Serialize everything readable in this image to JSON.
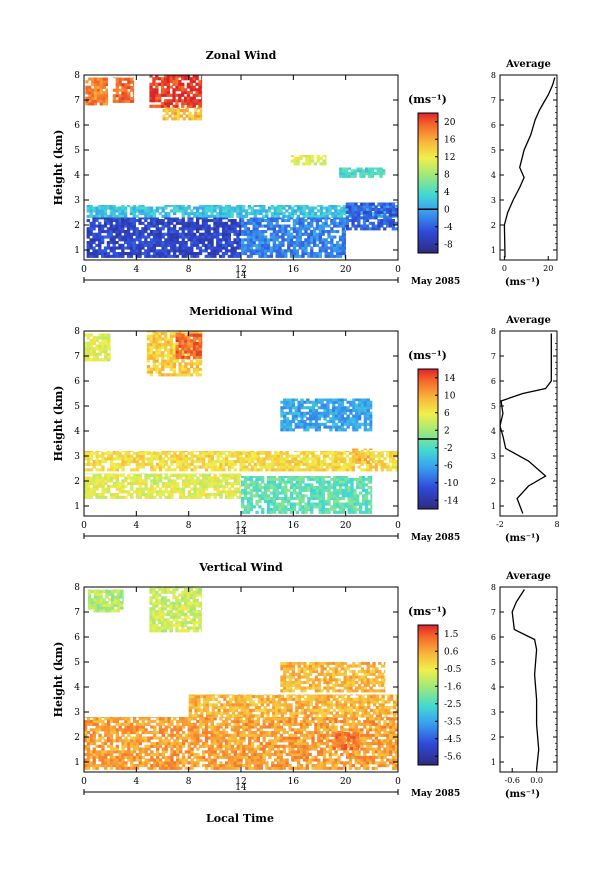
{
  "figure": {
    "date_label": "May 2085",
    "xlabel": "Local Time",
    "day_label": "14",
    "colorbar_unit": "(ms⁻¹)",
    "avg_unit": "(ms⁻¹)",
    "avg_title": "Average",
    "ylabel": "Height (km)"
  },
  "chart_data": [
    {
      "type": "heatmap",
      "title": "Zonal Wind",
      "xlabel": "Local Time",
      "ylabel": "Height (km)",
      "x_ticks": [
        "0",
        "4",
        "8",
        "12",
        "16",
        "20",
        "0"
      ],
      "xlim": [
        0,
        24
      ],
      "y_ticks": [
        "1",
        "2",
        "3",
        "4",
        "5",
        "6",
        "7",
        "8"
      ],
      "ylim": [
        0.6,
        8
      ],
      "colorbar": {
        "unit": "(ms⁻¹)",
        "ticks": [
          "20",
          "16",
          "12",
          "8",
          "4",
          "0",
          "-4",
          "-8"
        ],
        "range": [
          -10,
          22
        ],
        "zero_contour": 0
      },
      "regions": [
        {
          "t": [
            0.1,
            1.8
          ],
          "h": [
            6.8,
            7.9
          ],
          "value": 18
        },
        {
          "t": [
            2.2,
            3.8
          ],
          "h": [
            6.9,
            7.9
          ],
          "value": 19
        },
        {
          "t": [
            5,
            9
          ],
          "h": [
            6.7,
            8.0
          ],
          "value": 21
        },
        {
          "t": [
            6,
            9
          ],
          "h": [
            6.2,
            6.7
          ],
          "value": 15
        },
        {
          "t": [
            15.8,
            18.5
          ],
          "h": [
            4.4,
            4.8
          ],
          "value": 11
        },
        {
          "t": [
            19.5,
            23
          ],
          "h": [
            3.9,
            4.3
          ],
          "value": 4
        },
        {
          "t": [
            0.2,
            24
          ],
          "h": [
            2.3,
            2.8
          ],
          "value": 2
        },
        {
          "t": [
            0.2,
            12
          ],
          "h": [
            0.7,
            2.3
          ],
          "value": -6
        },
        {
          "t": [
            12,
            20
          ],
          "h": [
            0.7,
            2.3
          ],
          "value": -2
        },
        {
          "t": [
            20,
            24
          ],
          "h": [
            1.8,
            2.9
          ],
          "value": -4
        }
      ],
      "average": {
        "xlim": [
          -2,
          24
        ],
        "x_ticks": [
          "0",
          "20"
        ],
        "profile": [
          [
            0.3,
            0.7
          ],
          [
            0.2,
            1.2
          ],
          [
            0.0,
            2.0
          ],
          [
            1.5,
            2.5
          ],
          [
            4,
            3.0
          ],
          [
            7,
            3.5
          ],
          [
            9,
            3.9
          ],
          [
            7,
            4.3
          ],
          [
            9,
            5.0
          ],
          [
            12,
            5.6
          ],
          [
            14,
            6.2
          ],
          [
            16,
            6.6
          ],
          [
            18,
            6.9
          ],
          [
            20,
            7.2
          ],
          [
            22,
            7.6
          ],
          [
            23,
            7.9
          ]
        ]
      }
    },
    {
      "type": "heatmap",
      "title": "Meridional Wind",
      "xlabel": "Local Time",
      "ylabel": "Height (km)",
      "x_ticks": [
        "0",
        "4",
        "8",
        "12",
        "16",
        "20",
        "0"
      ],
      "xlim": [
        0,
        24
      ],
      "y_ticks": [
        "1",
        "2",
        "3",
        "4",
        "5",
        "6",
        "7",
        "8"
      ],
      "ylim": [
        0.6,
        8
      ],
      "colorbar": {
        "unit": "(ms⁻¹)",
        "ticks": [
          "14",
          "10",
          "6",
          "2",
          "-2",
          "-6",
          "-10",
          "-14"
        ],
        "range": [
          -16,
          16
        ],
        "zero_contour": 0
      },
      "regions": [
        {
          "t": [
            0,
            2
          ],
          "h": [
            6.8,
            7.9
          ],
          "value": 5
        },
        {
          "t": [
            4.8,
            9
          ],
          "h": [
            6.2,
            8.0
          ],
          "value": 8
        },
        {
          "t": [
            7,
            9
          ],
          "h": [
            6.9,
            7.9
          ],
          "value": 13
        },
        {
          "t": [
            15,
            22
          ],
          "h": [
            4.0,
            5.3
          ],
          "value": -6
        },
        {
          "t": [
            0,
            24
          ],
          "h": [
            2.4,
            3.2
          ],
          "value": 7
        },
        {
          "t": [
            0,
            12
          ],
          "h": [
            1.3,
            2.3
          ],
          "value": 5
        },
        {
          "t": [
            12,
            22
          ],
          "h": [
            0.7,
            2.2
          ],
          "value": -1
        },
        {
          "t": [
            20.5,
            22
          ],
          "h": [
            2.7,
            3.3
          ],
          "value": 9
        }
      ],
      "average": {
        "xlim": [
          -2,
          8
        ],
        "x_ticks": [
          "-2",
          "8"
        ],
        "profile": [
          [
            2,
            0.7
          ],
          [
            1,
            1.3
          ],
          [
            3,
            1.8
          ],
          [
            6,
            2.2
          ],
          [
            3,
            2.8
          ],
          [
            -1,
            3.3
          ],
          [
            -1.5,
            3.8
          ],
          [
            -2,
            4.2
          ],
          [
            -1.5,
            4.7
          ],
          [
            -1.8,
            5.2
          ],
          [
            2,
            5.5
          ],
          [
            6,
            5.7
          ],
          [
            7,
            6.0
          ],
          [
            7,
            7.0
          ],
          [
            7,
            7.9
          ]
        ]
      }
    },
    {
      "type": "heatmap",
      "title": "Vertical Wind",
      "xlabel": "Local Time",
      "ylabel": "Height (km)",
      "x_ticks": [
        "0",
        "4",
        "8",
        "12",
        "16",
        "20",
        "0"
      ],
      "xlim": [
        0,
        24
      ],
      "y_ticks": [
        "1",
        "2",
        "3",
        "4",
        "5",
        "6",
        "7",
        "8"
      ],
      "ylim": [
        0.6,
        8
      ],
      "colorbar": {
        "unit": "(ms⁻¹)",
        "ticks": [
          "1.5",
          "0.6",
          "-0.5",
          "-1.6",
          "-2.5",
          "-3.5",
          "-4.5",
          "-5.6"
        ],
        "range": [
          -6,
          2
        ],
        "zero_contour": null
      },
      "regions": [
        {
          "t": [
            0.3,
            3
          ],
          "h": [
            7.0,
            7.9
          ],
          "value": -1.3
        },
        {
          "t": [
            5,
            9
          ],
          "h": [
            6.2,
            8.0
          ],
          "value": -1.0
        },
        {
          "t": [
            15,
            23
          ],
          "h": [
            3.8,
            5.0
          ],
          "value": 0.3
        },
        {
          "t": [
            8,
            24
          ],
          "h": [
            2.8,
            3.7
          ],
          "value": 0.3
        },
        {
          "t": [
            0,
            24
          ],
          "h": [
            0.7,
            2.8
          ],
          "value": 0.6
        },
        {
          "t": [
            19,
            21
          ],
          "h": [
            1.5,
            2.2
          ],
          "value": 1.1
        }
      ],
      "average": {
        "xlim": [
          -0.9,
          0.5
        ],
        "x_ticks": [
          "-0.6",
          "0.0"
        ],
        "profile": [
          [
            0.0,
            0.7
          ],
          [
            0.05,
            1.5
          ],
          [
            0.0,
            2.5
          ],
          [
            0.0,
            3.5
          ],
          [
            -0.05,
            4.5
          ],
          [
            0.0,
            5.5
          ],
          [
            -0.05,
            5.9
          ],
          [
            -0.3,
            6.1
          ],
          [
            -0.55,
            6.3
          ],
          [
            -0.6,
            7.0
          ],
          [
            -0.5,
            7.4
          ],
          [
            -0.3,
            7.9
          ]
        ]
      }
    }
  ]
}
